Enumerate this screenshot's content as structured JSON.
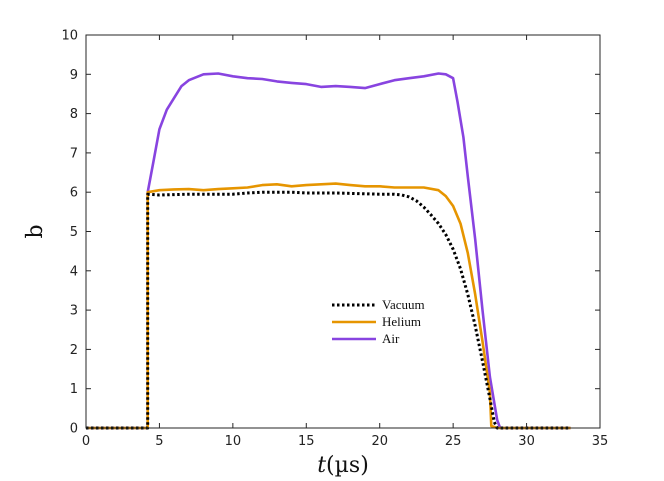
{
  "chart_data": {
    "type": "line",
    "title": "",
    "xlabel_italic": "t",
    "xlabel_unit": "(µs)",
    "ylabel": "b",
    "xlim": [
      0,
      35
    ],
    "ylim": [
      0,
      10
    ],
    "xticks": [
      0,
      5,
      10,
      15,
      20,
      25,
      30,
      35
    ],
    "yticks": [
      0,
      1,
      2,
      3,
      4,
      5,
      6,
      7,
      8,
      9,
      10
    ],
    "grid": false,
    "legend_position": "lower-center",
    "series": [
      {
        "name": "Vacuum",
        "color": "#000000",
        "style": "dotted",
        "x": [
          0,
          4.2,
          4.2,
          5,
          7,
          9,
          10,
          11,
          12,
          13,
          14,
          15,
          16,
          17,
          18,
          19,
          20,
          21,
          21.5,
          22,
          22.5,
          23,
          23.5,
          24,
          24.5,
          25,
          25.5,
          26,
          26.5,
          27,
          27.5,
          27.8,
          28,
          33
        ],
        "y": [
          0,
          0,
          5.95,
          5.93,
          5.95,
          5.95,
          5.95,
          5.98,
          6.0,
          6.0,
          6.0,
          5.98,
          5.98,
          5.98,
          5.97,
          5.96,
          5.95,
          5.95,
          5.93,
          5.88,
          5.78,
          5.62,
          5.42,
          5.2,
          4.92,
          4.55,
          4.05,
          3.4,
          2.6,
          1.7,
          0.75,
          0.15,
          0,
          0
        ]
      },
      {
        "name": "Helium",
        "color": "#e69500",
        "style": "solid",
        "x": [
          0,
          4.2,
          4.2,
          5,
          6,
          7,
          8,
          9,
          10,
          11,
          12,
          13,
          14,
          15,
          16,
          17,
          18,
          19,
          20,
          21,
          22,
          23,
          24,
          24.5,
          25,
          25.5,
          26,
          26.5,
          27,
          27.5,
          27.6,
          28,
          33
        ],
        "y": [
          0,
          0,
          6.0,
          6.05,
          6.07,
          6.08,
          6.05,
          6.08,
          6.1,
          6.12,
          6.18,
          6.2,
          6.15,
          6.18,
          6.2,
          6.22,
          6.18,
          6.15,
          6.15,
          6.12,
          6.12,
          6.12,
          6.05,
          5.9,
          5.65,
          5.2,
          4.45,
          3.4,
          2.2,
          0.9,
          0.05,
          0,
          0
        ]
      },
      {
        "name": "Air",
        "color": "#8844e0",
        "style": "solid",
        "x": [
          0,
          4.2,
          4.2,
          4.6,
          5,
          5.5,
          6,
          6.5,
          7,
          8,
          9,
          10,
          11,
          12,
          13,
          14,
          15,
          16,
          17,
          18,
          19,
          20,
          21,
          22,
          23,
          24,
          24.5,
          25,
          25.3,
          25.7,
          26,
          26.5,
          27,
          27.5,
          28,
          28.2,
          33
        ],
        "y": [
          0,
          0,
          6.0,
          6.8,
          7.6,
          8.1,
          8.4,
          8.7,
          8.85,
          9.0,
          9.02,
          8.95,
          8.9,
          8.88,
          8.82,
          8.78,
          8.75,
          8.68,
          8.7,
          8.68,
          8.65,
          8.75,
          8.85,
          8.9,
          8.95,
          9.02,
          9.0,
          8.9,
          8.3,
          7.4,
          6.4,
          4.8,
          3.0,
          1.3,
          0.2,
          0,
          0
        ]
      }
    ]
  }
}
